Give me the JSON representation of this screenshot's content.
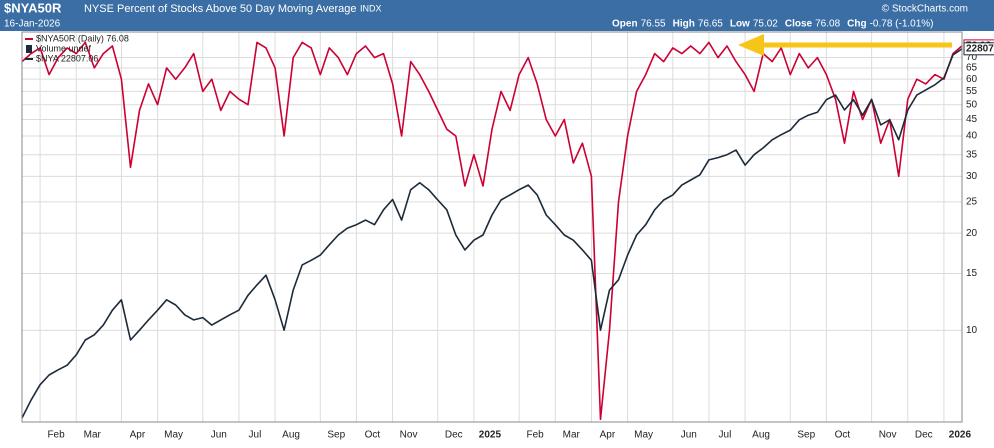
{
  "chart_data": {
    "type": "line",
    "title": "$NYA50R",
    "subtitle": "NYSE Percent of Stocks Above 50 Day Moving Average",
    "exchange": "INDX",
    "date": "16-Jan-2026",
    "credit": "© StockCharts.com",
    "quote": [
      {
        "label": "Open",
        "value": 76.55
      },
      {
        "label": "High",
        "value": 76.65
      },
      {
        "label": "Low",
        "value": 75.02
      },
      {
        "label": "Close",
        "value": 76.08
      },
      {
        "label": "Chg",
        "value": "-0.78 (-1.01%)"
      }
    ],
    "legend_extra": "Volume undef",
    "categories": [
      null,
      null,
      "Feb",
      null,
      null,
      null,
      "Mar",
      null,
      null,
      null,
      null,
      "Apr",
      null,
      null,
      null,
      "May",
      null,
      null,
      null,
      null,
      "Jun",
      null,
      null,
      null,
      "Jul",
      null,
      null,
      null,
      "Aug",
      null,
      null,
      null,
      null,
      "Sep",
      null,
      null,
      null,
      "Oct",
      null,
      null,
      null,
      "Nov",
      null,
      null,
      null,
      null,
      "Dec",
      null,
      null,
      null,
      "2025",
      null,
      null,
      null,
      null,
      "Feb",
      null,
      null,
      null,
      "Mar",
      null,
      null,
      null,
      "Apr",
      null,
      null,
      null,
      "May",
      null,
      null,
      null,
      null,
      "Jun",
      null,
      null,
      null,
      "Jul",
      null,
      null,
      null,
      "Aug",
      null,
      null,
      null,
      null,
      "Sep",
      null,
      null,
      null,
      "Oct",
      null,
      null,
      null,
      null,
      "Nov",
      null,
      null,
      null,
      "Dec",
      null,
      null,
      null,
      "2026",
      null,
      null
    ],
    "series": [
      {
        "name": "$NYA50R (Daily) 76.08",
        "color": "#cc0033",
        "end_label": "76.08",
        "values": [
          68,
          72,
          75,
          62,
          70,
          75,
          72,
          78,
          65,
          72,
          76,
          60,
          32,
          48,
          58,
          50,
          65,
          60,
          65,
          72,
          55,
          60,
          48,
          55,
          52,
          50,
          78,
          75,
          65,
          40,
          70,
          78,
          75,
          62,
          75,
          70,
          62,
          72,
          76,
          70,
          72,
          58,
          40,
          68,
          62,
          55,
          48,
          42,
          40,
          28,
          35,
          28,
          42,
          55,
          48,
          62,
          70,
          58,
          45,
          40,
          45,
          33,
          38,
          30,
          5.3,
          10,
          25,
          40,
          55,
          62,
          72,
          68,
          75,
          72,
          76,
          72,
          78,
          70,
          76,
          68,
          62,
          55,
          72,
          68,
          75,
          62,
          72,
          65,
          70,
          62,
          52,
          38,
          55,
          45,
          52,
          38,
          45,
          30,
          52,
          60,
          58,
          62,
          60,
          72,
          76.08
        ]
      },
      {
        "name": "$NYA 22807.06",
        "color": "#1c2a3a",
        "axis": "y2",
        "end_label": "22807",
        "values": [
          16370,
          16680,
          16950,
          17120,
          17210,
          17290,
          17470,
          17730,
          17820,
          17990,
          18250,
          18430,
          17730,
          17900,
          18080,
          18250,
          18430,
          18340,
          18170,
          18080,
          18120,
          17990,
          18080,
          18170,
          18250,
          18510,
          18690,
          18860,
          18430,
          17900,
          18600,
          19040,
          19120,
          19210,
          19390,
          19560,
          19680,
          19740,
          19820,
          19740,
          20000,
          20180,
          19820,
          20350,
          20470,
          20350,
          20170,
          20000,
          19560,
          19300,
          19470,
          19560,
          19910,
          20170,
          20260,
          20350,
          20430,
          20260,
          19910,
          19740,
          19560,
          19470,
          19300,
          19120,
          17900,
          18600,
          18780,
          19210,
          19560,
          19740,
          20000,
          20170,
          20260,
          20430,
          20520,
          20610,
          20870,
          20910,
          20960,
          21040,
          20780,
          20960,
          21080,
          21220,
          21310,
          21390,
          21570,
          21650,
          21700,
          21920,
          22000,
          21740,
          21920,
          21650,
          21920,
          21480,
          21570,
          21220,
          21740,
          22000,
          22090,
          22180,
          22300,
          22700,
          22807.06
        ]
      }
    ],
    "ylim": [
      5.2,
      84
    ],
    "yticks": [
      10,
      15,
      20,
      25,
      30,
      35,
      40,
      45,
      50,
      55,
      60,
      65,
      70
    ],
    "log_y": true,
    "y2lim": [
      16300,
      23100
    ],
    "grid": true
  }
}
